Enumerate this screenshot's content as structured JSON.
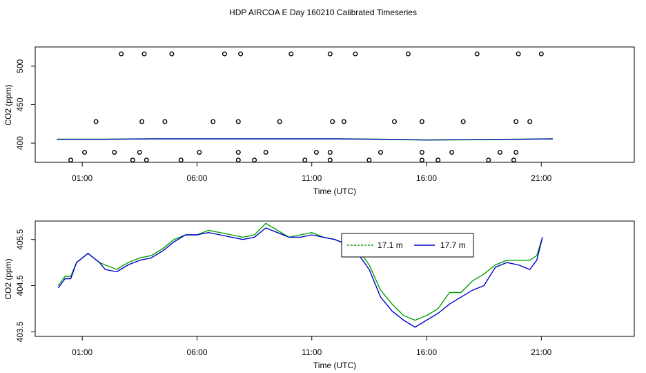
{
  "page_title": "HDP AIRCOA E  Day 160210  Calibrated Timeseries",
  "chart_data": [
    {
      "type": "scatter",
      "xlabel": "Time (UTC)",
      "ylabel": "CO2 (ppm)",
      "x_unit": "hours UTC",
      "xlim": [
        -1.05,
        25.05
      ],
      "ylim": [
        375,
        525
      ],
      "x_ticks": [
        1,
        6,
        11,
        16,
        21
      ],
      "x_tick_labels": [
        "01:00",
        "06:00",
        "11:00",
        "16:00",
        "21:00"
      ],
      "y_ticks": [
        400,
        450,
        500
      ],
      "y_tick_labels": [
        "400",
        "450",
        "500"
      ],
      "grid": false,
      "colors": {
        "line": "#0000cc",
        "line_under": "#00a000",
        "points": "#000000"
      },
      "line": {
        "x": [
          -0.1,
          2,
          4,
          6,
          8,
          10,
          12,
          14,
          16,
          18,
          20,
          21.5
        ],
        "y": [
          405,
          405,
          405.5,
          405.5,
          405.5,
          405.5,
          405.5,
          405,
          404,
          404.5,
          405,
          405.5
        ]
      },
      "points": {
        "x": [
          0.5,
          1.1,
          1.6,
          2.7,
          3.2,
          3.5,
          3.8,
          2.4,
          3.6,
          3.7,
          4.6,
          4.9,
          5.3,
          6.1,
          6.7,
          7.2,
          7.8,
          7.8,
          7.8,
          7.9,
          8.5,
          9.0,
          9.6,
          10.1,
          10.7,
          11.2,
          11.8,
          11.8,
          11.9,
          11.8,
          12.4,
          12.9,
          13.5,
          14.0,
          14.6,
          15.2,
          15.8,
          15.8,
          15.8,
          16.5,
          17.1,
          17.6,
          18.2,
          18.7,
          19.2,
          19.8,
          19.9,
          19.9,
          20.0,
          20.5,
          21.0
        ],
        "y": [
          378,
          388,
          428,
          516,
          378,
          388,
          378,
          388,
          428,
          516,
          428,
          516,
          378,
          388,
          428,
          516,
          378,
          388,
          428,
          516,
          378,
          388,
          428,
          516,
          378,
          388,
          378,
          388,
          428,
          516,
          428,
          516,
          378,
          388,
          428,
          516,
          378,
          388,
          428,
          378,
          388,
          428,
          516,
          378,
          388,
          378,
          388,
          428,
          516,
          428,
          516
        ]
      }
    },
    {
      "type": "line",
      "xlabel": "Time (UTC)",
      "ylabel": "CO2 (ppm)",
      "x_unit": "hours UTC",
      "xlim": [
        -1.05,
        25.05
      ],
      "ylim": [
        403.4,
        405.9
      ],
      "x_ticks": [
        1,
        6,
        11,
        16,
        21
      ],
      "x_tick_labels": [
        "01:00",
        "06:00",
        "11:00",
        "16:00",
        "21:00"
      ],
      "y_ticks": [
        403.5,
        404.5,
        405.5
      ],
      "y_tick_labels": [
        "403.5",
        "404.5",
        "405.5"
      ],
      "grid": false,
      "legend_position": "top-center",
      "series": [
        {
          "name": "17.1 m",
          "color": "#00a000",
          "x": [
            -0.05,
            0.25,
            0.5,
            0.75,
            1,
            1.25,
            1.5,
            1.75,
            2,
            2.5,
            3,
            3.5,
            4,
            4.5,
            5,
            5.5,
            6,
            6.5,
            7,
            7.5,
            8,
            8.5,
            9,
            9.5,
            10,
            10.5,
            11,
            11.5,
            12,
            12.5,
            13,
            13.5,
            14,
            14.5,
            15,
            15.5,
            16,
            16.5,
            17,
            17.5,
            18,
            18.5,
            19,
            19.5,
            20,
            20.5,
            20.8,
            21.05
          ],
          "y": [
            404.5,
            404.7,
            404.7,
            405,
            405.1,
            405.2,
            405.1,
            405,
            404.95,
            404.85,
            405,
            405.1,
            405.15,
            405.3,
            405.5,
            405.6,
            405.6,
            405.7,
            405.65,
            405.6,
            405.55,
            405.6,
            405.85,
            405.7,
            405.55,
            405.6,
            405.65,
            405.55,
            405.5,
            405.4,
            405.3,
            404.95,
            404.4,
            404.1,
            403.85,
            403.75,
            403.85,
            404,
            404.35,
            404.35,
            404.6,
            404.75,
            404.95,
            405.05,
            405.05,
            405.05,
            405.15,
            405.55
          ]
        },
        {
          "name": "17.7 m",
          "color": "#0000cc",
          "x": [
            -0.05,
            0.25,
            0.5,
            0.75,
            1,
            1.25,
            1.5,
            1.75,
            2,
            2.5,
            3,
            3.5,
            4,
            4.5,
            5,
            5.5,
            6,
            6.5,
            7,
            7.5,
            8,
            8.5,
            9,
            9.5,
            10,
            10.5,
            11,
            11.5,
            12,
            12.5,
            13,
            13.5,
            14,
            14.5,
            15,
            15.5,
            16,
            16.5,
            17,
            17.5,
            18,
            18.5,
            19,
            19.5,
            20,
            20.5,
            20.8,
            21.05
          ],
          "y": [
            404.45,
            404.65,
            404.65,
            405,
            405.1,
            405.2,
            405.1,
            405,
            404.85,
            404.8,
            404.95,
            405.05,
            405.1,
            405.25,
            405.45,
            405.6,
            405.6,
            405.65,
            405.6,
            405.55,
            405.5,
            405.55,
            405.75,
            405.65,
            405.55,
            405.55,
            405.6,
            405.55,
            405.5,
            405.4,
            405.2,
            404.85,
            404.25,
            403.95,
            403.75,
            403.6,
            403.75,
            403.9,
            404.1,
            404.25,
            404.4,
            404.5,
            404.9,
            405,
            404.95,
            404.85,
            405.05,
            405.55
          ]
        }
      ]
    }
  ]
}
